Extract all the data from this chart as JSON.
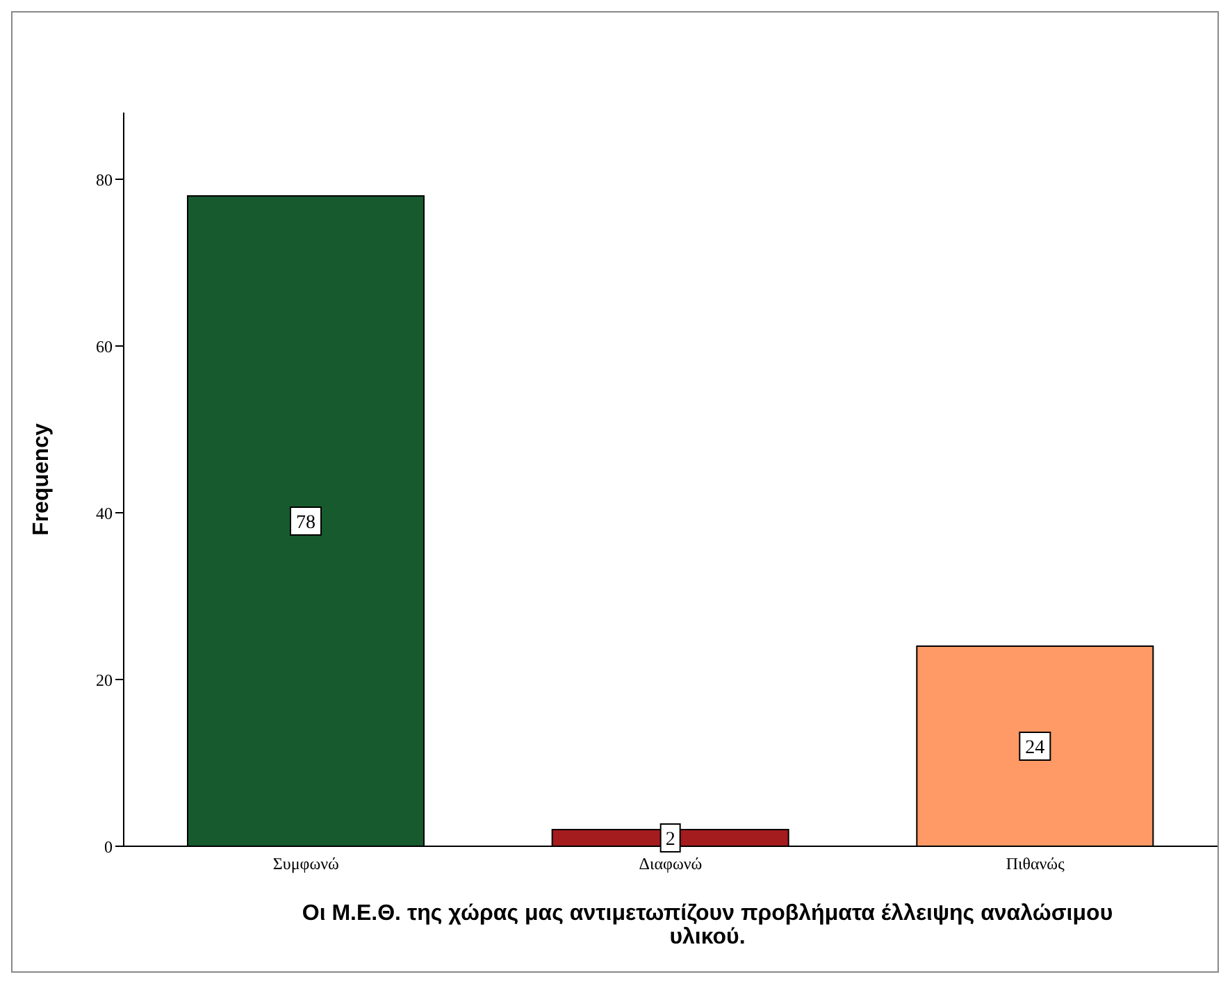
{
  "chart_data": {
    "type": "bar",
    "xlabel": "Οι Μ.Ε.Θ. της χώρας μας αντιμετωπίζουν προβλήματα έλλειψης αναλώσιμου υλικού.",
    "ylabel": "Frequency",
    "categories": [
      "Συμφωνώ",
      "Διαφωνώ",
      "Πιθανώς"
    ],
    "values": [
      78,
      2,
      24
    ],
    "colors": [
      "#165a2e",
      "#a51c1e",
      "#ff9966"
    ],
    "ylim": [
      0,
      88
    ],
    "yticks": [
      0,
      20,
      40,
      60,
      80
    ],
    "grid": false,
    "legend": false,
    "data_labels": true
  }
}
